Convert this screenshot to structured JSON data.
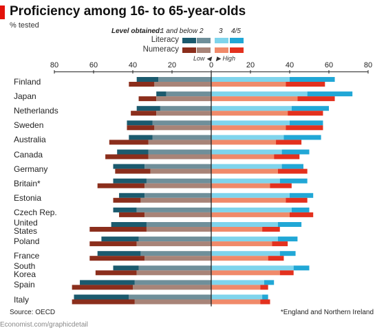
{
  "header": {
    "title": "Proficiency among 16- to 65-year-olds",
    "subtitle": "% tested"
  },
  "legend": {
    "heading": "Level obtained:",
    "levels": [
      "1 and below",
      "2",
      "3",
      "4/5"
    ],
    "rows": [
      "Literacy",
      "Numeracy"
    ],
    "low_label": "Low",
    "high_label": "High"
  },
  "colors": {
    "literacy": [
      "#1b5a6e",
      "#6f8f9a",
      "#7fd4ec",
      "#21a7d6"
    ],
    "numeracy": [
      "#8b2e1c",
      "#a88478",
      "#f08a6a",
      "#e3311e"
    ],
    "axis": "#222222"
  },
  "chart_data": {
    "type": "bar",
    "orientation": "horizontal-diverging",
    "xlim": [
      -80,
      80
    ],
    "xticks": [
      "80",
      "60",
      "40",
      "20",
      "0",
      "20",
      "40",
      "60",
      "80"
    ],
    "series_order": [
      "1 and below",
      "2",
      "3",
      "4/5"
    ],
    "categories": [
      "Finland",
      "Japan",
      "Netherlands",
      "Sweden",
      "Australia",
      "Canada",
      "Germany",
      "Britain*",
      "Estonia",
      "Czech Rep.",
      "United States",
      "Poland",
      "France",
      "South Korea",
      "Spain",
      "Italy"
    ],
    "category_labels": [
      "Finland",
      "Japan",
      "Netherlands",
      "Sweden",
      "Australia",
      "Canada",
      "Germany",
      "Britain*",
      "Estonia",
      "Czech Rep.",
      "United\nStates",
      "Poland",
      "France",
      "South\nKorea",
      "Spain",
      "Italy"
    ],
    "literacy": {
      "level1": [
        11,
        5,
        12,
        13,
        12,
        16,
        16,
        17,
        13,
        12,
        18,
        19,
        22,
        13,
        28,
        28
      ],
      "level2": [
        27,
        23,
        26,
        30,
        30,
        32,
        34,
        33,
        34,
        38,
        33,
        37,
        36,
        37,
        39,
        42
      ],
      "level3": [
        40,
        49,
        41,
        40,
        37,
        36,
        36,
        35,
        40,
        41,
        34,
        34,
        35,
        42,
        27,
        26
      ],
      "level4": [
        23,
        23,
        19,
        17,
        19,
        14,
        11,
        14,
        12,
        9,
        12,
        10,
        8,
        8,
        5,
        3
      ]
    },
    "numeracy": {
      "level1": [
        13,
        9,
        13,
        14,
        20,
        22,
        18,
        24,
        14,
        13,
        29,
        24,
        28,
        21,
        31,
        32
      ],
      "level2": [
        29,
        28,
        28,
        29,
        32,
        32,
        31,
        34,
        36,
        34,
        33,
        38,
        34,
        38,
        40,
        39
      ],
      "level3": [
        38,
        44,
        39,
        38,
        33,
        32,
        34,
        30,
        38,
        40,
        26,
        31,
        29,
        35,
        25,
        25
      ],
      "level4": [
        20,
        19,
        18,
        19,
        13,
        13,
        15,
        11,
        11,
        12,
        9,
        8,
        8,
        7,
        4,
        5
      ]
    }
  },
  "footer": {
    "source": "Source: OECD",
    "footnote": "*England and Northern Ireland",
    "credit": "Economist.com/graphicdetail"
  }
}
